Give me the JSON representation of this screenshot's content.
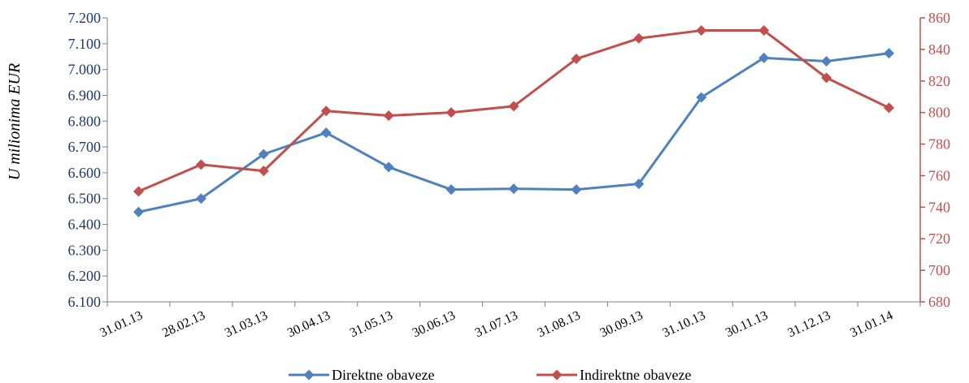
{
  "chart_data": {
    "type": "line",
    "title": "",
    "ylabel": "U milionima EUR",
    "categories": [
      "31.01.13",
      "28.02.13",
      "31.03.13",
      "30.04.13",
      "31.05.13",
      "30.06.13",
      "31.07.13",
      "31.08.13",
      "30.09.13",
      "31.10.13",
      "30.11.13",
      "31.12.13",
      "31.01.14"
    ],
    "y_left": {
      "min": 6100,
      "max": 7200,
      "step": 100,
      "ticks": [
        "6.100",
        "6.200",
        "6.300",
        "6.400",
        "6.500",
        "6.600",
        "6.700",
        "6.800",
        "6.900",
        "7.000",
        "7.100",
        "7.200"
      ]
    },
    "y_right": {
      "min": 680,
      "max": 860,
      "step": 20,
      "ticks": [
        "680",
        "700",
        "720",
        "740",
        "760",
        "780",
        "800",
        "820",
        "840",
        "860"
      ]
    },
    "series": [
      {
        "name": "Direktne obaveze",
        "axis": "left",
        "color": "#4f81bd",
        "values": [
          6448,
          6500,
          6672,
          6755,
          6622,
          6535,
          6538,
          6535,
          6557,
          6892,
          7045,
          7032,
          7063
        ]
      },
      {
        "name": "Indirektne obaveze",
        "axis": "right",
        "color": "#c0504d",
        "values": [
          750,
          767,
          763,
          801,
          798,
          800,
          804,
          834,
          847,
          852,
          852,
          822,
          803
        ]
      }
    ],
    "legend_position": "bottom",
    "grid": false
  }
}
